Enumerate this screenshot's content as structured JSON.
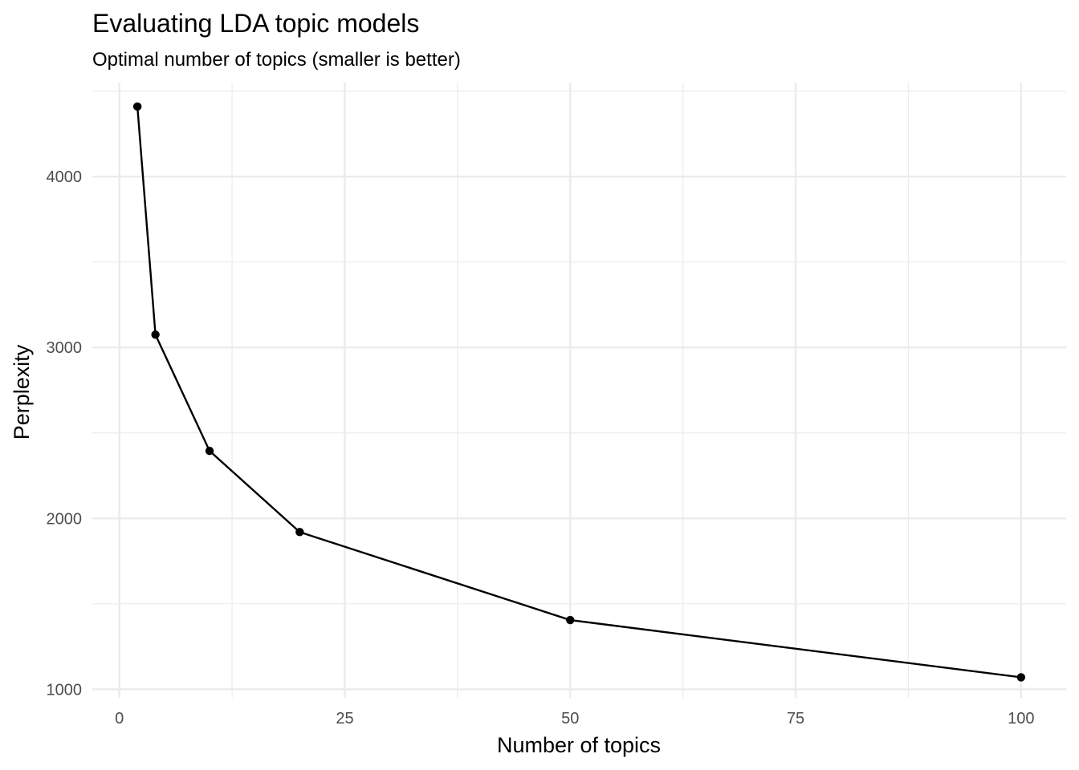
{
  "chart_data": {
    "type": "line",
    "title": "Evaluating LDA topic models",
    "subtitle": "Optimal number of topics (smaller is better)",
    "xlabel": "Number of topics",
    "ylabel": "Perplexity",
    "x": [
      2,
      4,
      10,
      20,
      50,
      100
    ],
    "series": [
      {
        "values": [
          4410,
          3075,
          2395,
          1920,
          1405,
          1070
        ]
      }
    ],
    "xlim": [
      -3,
      105
    ],
    "ylim": [
      950,
      4550
    ],
    "x_ticks": [
      0,
      25,
      50,
      75,
      100
    ],
    "x_tick_labels": [
      "0",
      "25",
      "50",
      "75",
      "100"
    ],
    "y_ticks": [
      1000,
      2000,
      3000,
      4000
    ],
    "y_tick_labels": [
      "1000",
      "2000",
      "3000",
      "4000"
    ],
    "grid": true,
    "theme": "minimal",
    "colors": {
      "series": "#000000",
      "grid": "#ebebeb",
      "tick_text": "#4d4d4d"
    }
  }
}
